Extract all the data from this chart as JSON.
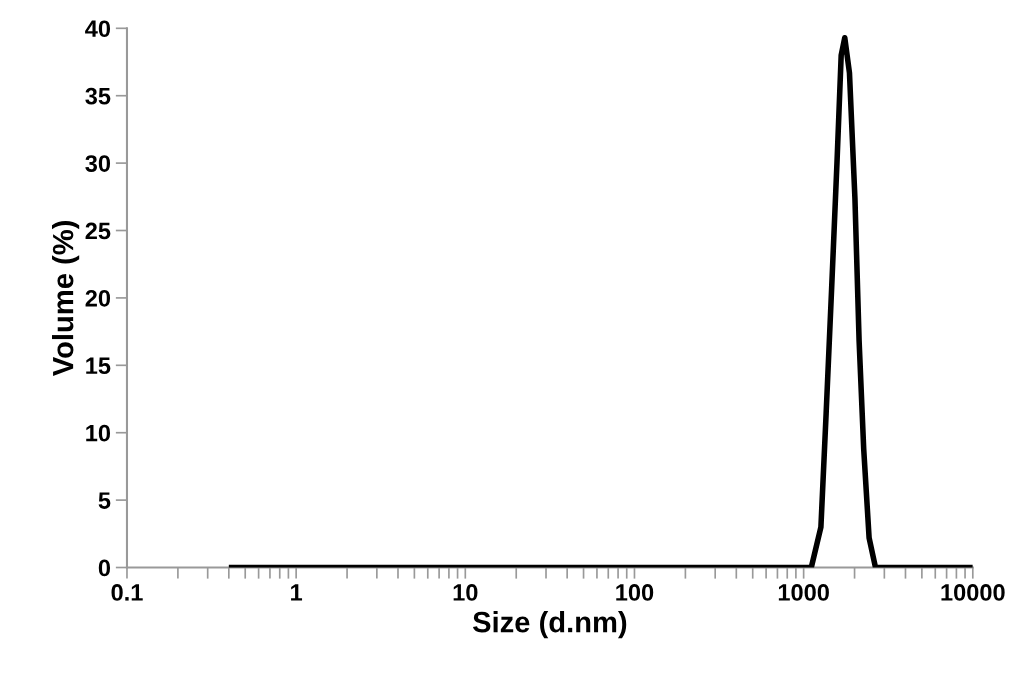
{
  "chart_data": {
    "type": "line",
    "xlabel": "Size (d.nm)",
    "ylabel": "Volume (%)",
    "log": "x",
    "xlim": [
      0.1,
      10000
    ],
    "xticks": [
      0.1,
      {
        "value": 0.2,
        "label": null
      },
      {
        "value": 0.3,
        "label": null
      },
      {
        "value": 0.4,
        "label": null
      },
      {
        "value": 0.5,
        "label": null
      },
      {
        "value": 0.6,
        "label": null
      },
      {
        "value": 0.7,
        "label": null
      },
      {
        "value": 0.8,
        "label": null
      },
      {
        "value": 0.9,
        "label": null
      },
      1,
      {
        "value": 2,
        "label": null
      },
      {
        "value": 3,
        "label": null
      },
      {
        "value": 4,
        "label": null
      },
      {
        "value": 5,
        "label": null
      },
      {
        "value": 6,
        "label": null
      },
      {
        "value": 7,
        "label": null
      },
      {
        "value": 8,
        "label": null
      },
      {
        "value": 9,
        "label": null
      },
      10,
      {
        "value": 20,
        "label": null
      },
      {
        "value": 30,
        "label": null
      },
      {
        "value": 40,
        "label": null
      },
      {
        "value": 50,
        "label": null
      },
      {
        "value": 60,
        "label": null
      },
      {
        "value": 70,
        "label": null
      },
      {
        "value": 80,
        "label": null
      },
      {
        "value": 90,
        "label": null
      },
      100,
      {
        "value": 200,
        "label": null
      },
      {
        "value": 300,
        "label": null
      },
      {
        "value": 400,
        "label": null
      },
      {
        "value": 500,
        "label": null
      },
      {
        "value": 600,
        "label": null
      },
      {
        "value": 700,
        "label": null
      },
      {
        "value": 800,
        "label": null
      },
      {
        "value": 900,
        "label": null
      },
      1000,
      {
        "value": 2000,
        "label": null
      },
      {
        "value": 3000,
        "label": null
      },
      {
        "value": 4000,
        "label": null
      },
      {
        "value": 5000,
        "label": null
      },
      {
        "value": 6000,
        "label": null
      },
      {
        "value": 7000,
        "label": null
      },
      {
        "value": 8000,
        "label": null
      },
      {
        "value": 9000,
        "label": null
      },
      10000
    ],
    "ylim": [
      0,
      40
    ],
    "yticks": [
      0,
      5,
      10,
      15,
      20,
      25,
      30,
      35,
      40
    ],
    "grid": false,
    "legend": false,
    "marker": "none",
    "line_style": "solid",
    "series": [
      {
        "color": "#000000",
        "x": [
          0.4,
          1110,
          1265,
          1358,
          1464,
          1574,
          1667,
          1750,
          1866,
          2010,
          2128,
          2265,
          2438,
          2660,
          10000
        ],
        "values": [
          0,
          0,
          3.0,
          11.4,
          20.7,
          30.0,
          38.0,
          39.3,
          36.7,
          27.4,
          16.8,
          8.8,
          2.2,
          0,
          0
        ]
      }
    ]
  }
}
